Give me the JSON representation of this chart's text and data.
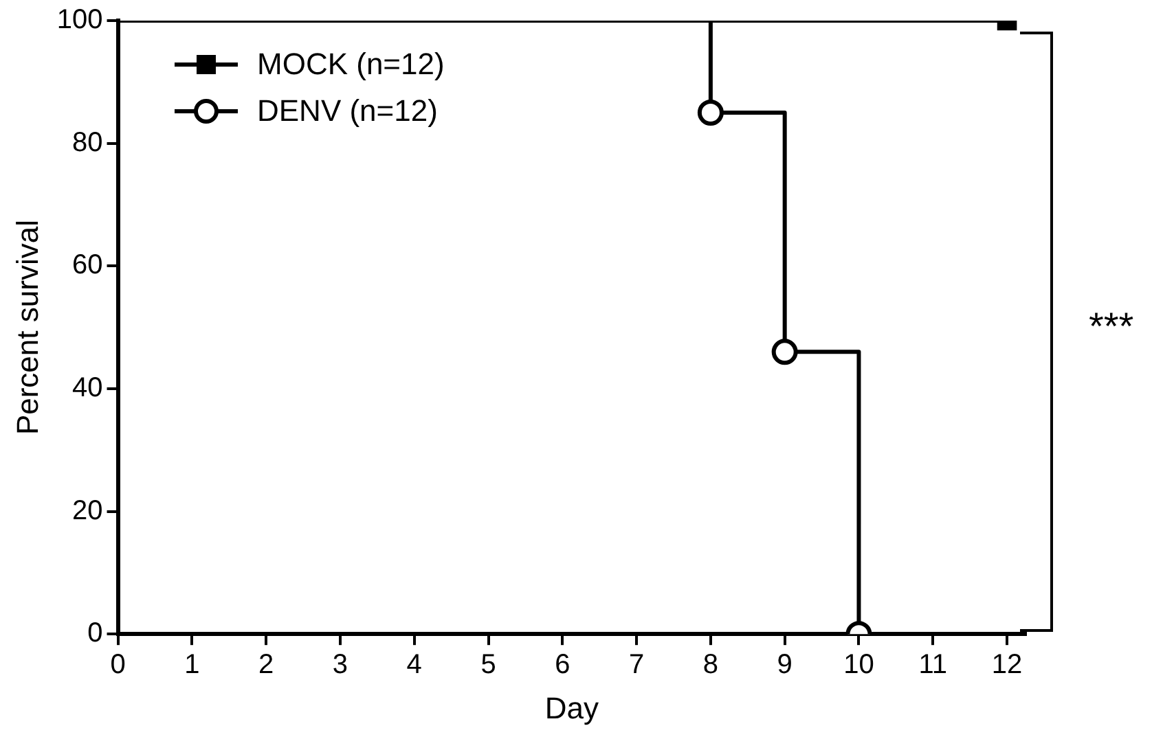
{
  "chart_data": {
    "type": "step",
    "xlabel": "Day",
    "ylabel": "Percent survival",
    "xlim": [
      0,
      12.25
    ],
    "xticks": [
      0,
      1,
      2,
      3,
      4,
      5,
      6,
      7,
      8,
      9,
      10,
      11,
      12
    ],
    "ylim": [
      0,
      100
    ],
    "yticks": [
      0,
      20,
      40,
      60,
      80,
      100
    ],
    "grid": false,
    "legend": "top left",
    "annotations": [
      "***"
    ],
    "series": [
      {
        "name": "MOCK (n=12)",
        "color": "#000000",
        "marker": "square",
        "x": [
          0,
          12
        ],
        "values": [
          100,
          100
        ]
      },
      {
        "name": "DENV (n=12)",
        "color": "#000000",
        "marker": "circle",
        "x": [
          0,
          8,
          9,
          10
        ],
        "values": [
          100,
          85,
          46,
          0
        ]
      }
    ]
  }
}
